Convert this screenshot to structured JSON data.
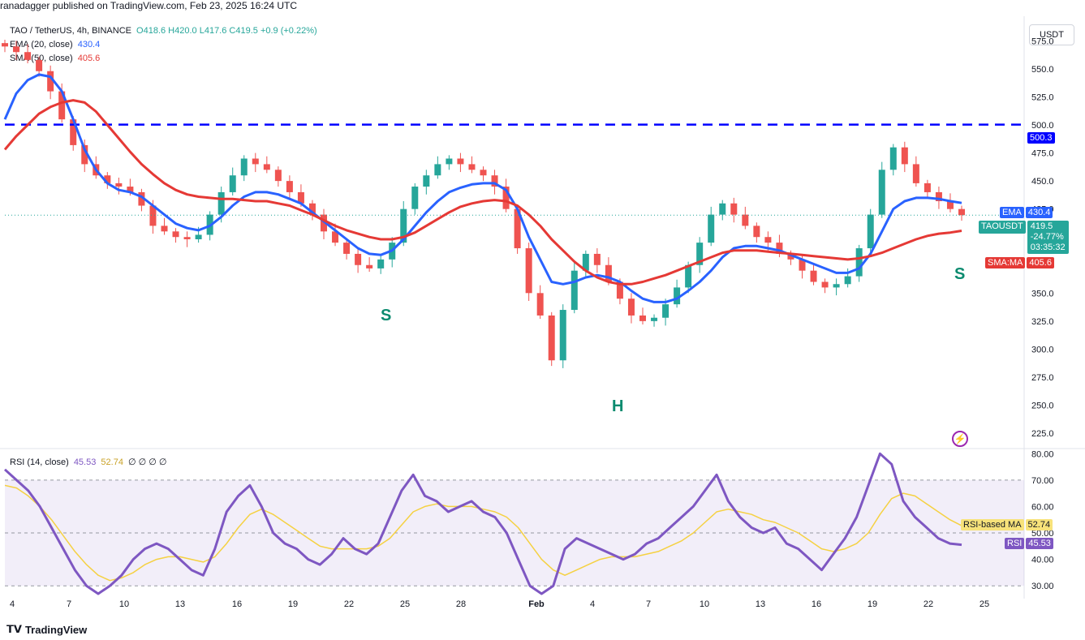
{
  "header": {
    "published_line": "ranadagger published on TradingView.com, Feb 23, 2025 16:24 UTC"
  },
  "legend": {
    "symbol": "TAO / TetherUS, 4h, BINANCE",
    "ohlc": "O418.6 H420.0 L417.6 C419.5 +0.9 (+0.22%)",
    "ema_label": "EMA (20, close)",
    "ema_value": "430.4",
    "sma_label": "SMA (50, close)",
    "sma_value": "405.6",
    "rsi_label": "RSI (14, close)",
    "rsi_value": "45.53",
    "rsi_ma_value": "52.74",
    "rsi_extra": "∅ ∅ ∅ ∅"
  },
  "currency_button": "USDT",
  "price_tags": {
    "resistance": "500.3",
    "ema_tag": "EMA",
    "ema_val": "430.4",
    "symbol_tag": "TAOUSDT",
    "last_price": "419.5",
    "change": "-24.77%",
    "countdown": "03:35:32",
    "sma_tag": "SMA:MA",
    "sma_val": "405.6",
    "rsi_ma_tag": "RSI-based MA",
    "rsi_ma_val": "52.74",
    "rsi_tag": "RSI",
    "rsi_val": "45.53"
  },
  "pattern_labels": {
    "left_shoulder": "S",
    "head": "H",
    "right_shoulder": "S"
  },
  "footer": {
    "brand": "TradingView"
  },
  "colors": {
    "up": "#26a69a",
    "down": "#ef5350",
    "ema": "#2962ff",
    "sma": "#e53935",
    "resistance": "#0000ff",
    "rsi": "#7e57c2",
    "rsi_ma": "#f5d142",
    "pattern": "#0b8b6f"
  },
  "chart_data": [
    {
      "type": "line",
      "title": "TAO / TetherUS, 4h, BINANCE",
      "x_ticks": [
        "4",
        "7",
        "10",
        "13",
        "16",
        "19",
        "22",
        "25",
        "28",
        "Feb",
        "4",
        "7",
        "10",
        "13",
        "16",
        "19",
        "22",
        "25"
      ],
      "y_ticks": [
        225.0,
        250.0,
        275.0,
        300.0,
        325.0,
        350.0,
        375.0,
        400.0,
        425.0,
        450.0,
        475.0,
        500.0,
        525.0,
        550.0,
        575.0
      ],
      "ylim": [
        212,
        597
      ],
      "resistance_level": 500.3,
      "series": [
        {
          "name": "TAOUSDT",
          "values": [
            570,
            565,
            558,
            548,
            530,
            505,
            482,
            465,
            455,
            448,
            445,
            440,
            428,
            410,
            405,
            400,
            398,
            402,
            420,
            440,
            455,
            470,
            465,
            460,
            450,
            440,
            430,
            420,
            405,
            395,
            385,
            375,
            372,
            380,
            395,
            425,
            445,
            455,
            465,
            470,
            465,
            460,
            455,
            445,
            425,
            390,
            350,
            330,
            290,
            335,
            370,
            385,
            375,
            360,
            345,
            330,
            325,
            328,
            340,
            355,
            375,
            395,
            420,
            430,
            420,
            410,
            400,
            395,
            385,
            380,
            370,
            360,
            355,
            358,
            365,
            390,
            420,
            460,
            480,
            465,
            448,
            440,
            432,
            425,
            419.5
          ]
        },
        {
          "name": "EMA (20, close)",
          "values": [
            505,
            528,
            540,
            545,
            543,
            530,
            505,
            478,
            460,
            448,
            442,
            440,
            436,
            428,
            420,
            412,
            408,
            406,
            410,
            418,
            428,
            436,
            440,
            440,
            438,
            434,
            430,
            422,
            414,
            406,
            398,
            390,
            385,
            384,
            388,
            398,
            410,
            422,
            432,
            440,
            444,
            447,
            448,
            448,
            442,
            425,
            400,
            380,
            360,
            358,
            360,
            364,
            366,
            364,
            360,
            352,
            345,
            342,
            342,
            345,
            352,
            360,
            370,
            382,
            390,
            392,
            392,
            390,
            388,
            384,
            380,
            376,
            372,
            368,
            368,
            372,
            385,
            405,
            425,
            432,
            435,
            435,
            434,
            432,
            430.4
          ]
        },
        {
          "name": "SMA (50, close)",
          "values": [
            478,
            490,
            500,
            510,
            516,
            520,
            522,
            520,
            512,
            500,
            488,
            476,
            465,
            456,
            448,
            442,
            438,
            436,
            435,
            434,
            434,
            433,
            432,
            432,
            430,
            428,
            424,
            420,
            415,
            410,
            406,
            403,
            400,
            398,
            398,
            400,
            404,
            410,
            416,
            422,
            427,
            430,
            432,
            433,
            432,
            428,
            420,
            410,
            398,
            388,
            378,
            370,
            364,
            360,
            358,
            358,
            360,
            363,
            366,
            370,
            374,
            378,
            382,
            386,
            388,
            388,
            388,
            387,
            386,
            385,
            384,
            383,
            382,
            381,
            380,
            381,
            383,
            386,
            390,
            394,
            398,
            401,
            403,
            404,
            405.6
          ]
        }
      ]
    },
    {
      "type": "line",
      "title": "RSI (14, close)",
      "y_ticks": [
        30.0,
        40.0,
        50.0,
        60.0,
        70.0,
        80.0
      ],
      "ylim": [
        27,
        81
      ],
      "bands": [
        30,
        50,
        70
      ],
      "series": [
        {
          "name": "RSI (14, close)",
          "values": [
            74,
            70,
            66,
            60,
            52,
            44,
            36,
            30,
            26,
            30,
            34,
            40,
            44,
            46,
            44,
            40,
            36,
            34,
            44,
            58,
            64,
            68,
            60,
            50,
            46,
            44,
            40,
            38,
            42,
            48,
            44,
            42,
            46,
            56,
            66,
            72,
            64,
            62,
            58,
            60,
            62,
            58,
            56,
            50,
            40,
            30,
            26,
            30,
            44,
            48,
            46,
            44,
            42,
            40,
            42,
            46,
            48,
            52,
            56,
            60,
            66,
            72,
            62,
            56,
            52,
            50,
            52,
            46,
            44,
            40,
            36,
            42,
            48,
            56,
            68,
            80,
            76,
            62,
            56,
            52,
            48,
            46,
            45.53
          ]
        },
        {
          "name": "RSI-based MA",
          "values": [
            68,
            67,
            64,
            60,
            55,
            49,
            43,
            38,
            34,
            32,
            33,
            35,
            38,
            40,
            41,
            41,
            40,
            39,
            41,
            46,
            52,
            57,
            59,
            57,
            54,
            51,
            48,
            45,
            44,
            44,
            44,
            44,
            45,
            48,
            53,
            58,
            60,
            61,
            60,
            60,
            60,
            59,
            58,
            56,
            52,
            46,
            40,
            36,
            34,
            36,
            38,
            40,
            41,
            41,
            41,
            42,
            43,
            45,
            47,
            50,
            54,
            58,
            59,
            58,
            57,
            55,
            54,
            52,
            50,
            47,
            44,
            43,
            44,
            46,
            50,
            57,
            63,
            65,
            64,
            61,
            58,
            55,
            52.74
          ]
        }
      ]
    }
  ]
}
